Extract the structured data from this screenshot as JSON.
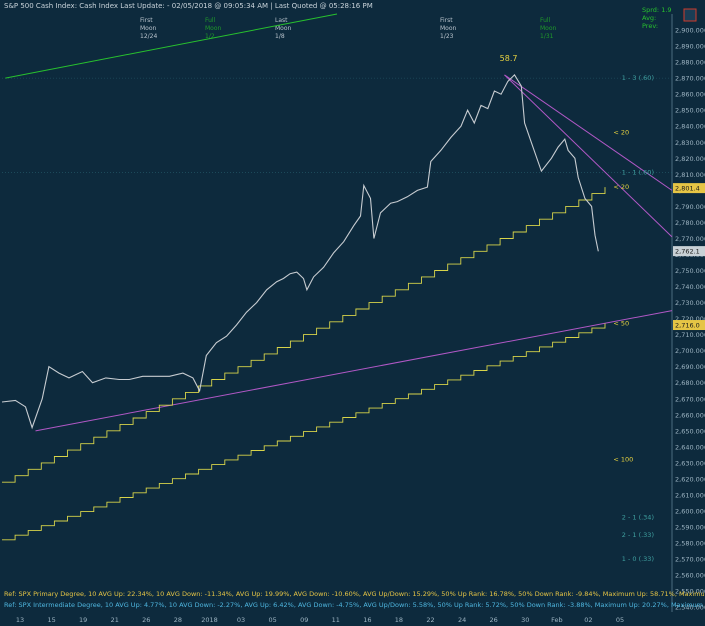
{
  "header": {
    "title": "S&P 500 Cash Index:  Cash Index  Last Update: - 02/05/2018 @ 09:05:34 AM | Last Quoted @ 05:28:16 PM",
    "moon_columns": [
      {
        "l1": "",
        "l2": "",
        "l3": "",
        "color": "#1f9a2a"
      },
      {
        "l1": "First",
        "l2": "Moon",
        "l3": "12/24",
        "color": "#b9c3cc"
      },
      {
        "l1": "Full",
        "l2": "Moon",
        "l3": "1/2",
        "color": "#1f9a2a"
      },
      {
        "l1": "Last",
        "l2": "Moon",
        "l3": "1/8",
        "color": "#b9c3cc"
      },
      {
        "l1": "",
        "l2": "",
        "l3": "",
        "color": "#1f9a2a"
      },
      {
        "l1": "First",
        "l2": "Moon",
        "l3": "1/23",
        "color": "#b9c3cc"
      },
      {
        "l1": "Full",
        "l2": "Moon",
        "l3": "1/31",
        "color": "#1f9a2a"
      }
    ],
    "right_labels": [
      "Sprd: 1.9",
      "Avg:",
      "Prev:"
    ]
  },
  "chart_data": {
    "type": "line",
    "peak_label": "58.7",
    "y_ticks": [
      2540,
      2550,
      2560,
      2570,
      2580,
      2590,
      2600,
      2610,
      2620,
      2630,
      2640,
      2650,
      2660,
      2670,
      2680,
      2690,
      2700,
      2710,
      2720,
      2730,
      2740,
      2750,
      2760,
      2770,
      2780,
      2790,
      2800,
      2810,
      2820,
      2830,
      2840,
      2850,
      2860,
      2870,
      2880,
      2890,
      2900
    ],
    "ylim": [
      2537,
      2910
    ],
    "x_ticks": [
      "13",
      "15",
      "19",
      "21",
      "26",
      "28",
      "2018",
      "03",
      "05",
      "09",
      "11",
      "16",
      "18",
      "22",
      "24",
      "26",
      "30",
      "Feb",
      "02",
      "05"
    ],
    "price_path": [
      [
        0,
        2668
      ],
      [
        8,
        2669
      ],
      [
        14,
        2665
      ],
      [
        18,
        2652
      ],
      [
        24,
        2670
      ],
      [
        28,
        2690
      ],
      [
        34,
        2686
      ],
      [
        40,
        2683
      ],
      [
        48,
        2687
      ],
      [
        54,
        2680
      ],
      [
        62,
        2683
      ],
      [
        70,
        2682
      ],
      [
        76,
        2682
      ],
      [
        84,
        2684
      ],
      [
        92,
        2684
      ],
      [
        100,
        2684
      ],
      [
        108,
        2686
      ],
      [
        114,
        2683
      ],
      [
        118,
        2675
      ],
      [
        122,
        2697
      ],
      [
        128,
        2705
      ],
      [
        134,
        2709
      ],
      [
        140,
        2716
      ],
      [
        146,
        2724
      ],
      [
        152,
        2730
      ],
      [
        158,
        2738
      ],
      [
        164,
        2743
      ],
      [
        168,
        2745
      ],
      [
        172,
        2748
      ],
      [
        176,
        2749
      ],
      [
        180,
        2745
      ],
      [
        182,
        2738
      ],
      [
        186,
        2746
      ],
      [
        192,
        2752
      ],
      [
        198,
        2761
      ],
      [
        204,
        2768
      ],
      [
        210,
        2778
      ],
      [
        214,
        2784
      ],
      [
        216,
        2803
      ],
      [
        220,
        2795
      ],
      [
        222,
        2770
      ],
      [
        226,
        2786
      ],
      [
        232,
        2792
      ],
      [
        236,
        2793
      ],
      [
        242,
        2796
      ],
      [
        248,
        2800
      ],
      [
        254,
        2802
      ],
      [
        256,
        2818
      ],
      [
        262,
        2825
      ],
      [
        268,
        2833
      ],
      [
        274,
        2840
      ],
      [
        278,
        2850
      ],
      [
        282,
        2842
      ],
      [
        286,
        2853
      ],
      [
        290,
        2851
      ],
      [
        294,
        2862
      ],
      [
        298,
        2860
      ],
      [
        302,
        2868
      ],
      [
        304,
        2870
      ],
      [
        306,
        2872
      ],
      [
        310,
        2865
      ],
      [
        312,
        2842
      ],
      [
        316,
        2830
      ],
      [
        320,
        2818
      ],
      [
        322,
        2812
      ],
      [
        328,
        2820
      ],
      [
        332,
        2827
      ],
      [
        336,
        2832
      ],
      [
        338,
        2825
      ],
      [
        342,
        2820
      ],
      [
        344,
        2808
      ],
      [
        348,
        2795
      ],
      [
        352,
        2790
      ],
      [
        354,
        2772
      ],
      [
        356,
        2762
      ]
    ],
    "lines": [
      {
        "name": "green_top",
        "color": "#28c12e",
        "pts": [
          [
            2,
            2870
          ],
          [
            200,
            2910
          ]
        ]
      },
      {
        "name": "purple_low",
        "color": "#b158c6",
        "pts": [
          [
            20,
            2650
          ],
          [
            400,
            2725
          ]
        ]
      },
      {
        "name": "purple_down1",
        "color": "#b158c6",
        "pts": [
          [
            300,
            2872
          ],
          [
            400,
            2800
          ]
        ]
      },
      {
        "name": "purple_down2",
        "color": "#b158c6",
        "pts": [
          [
            300,
            2872
          ],
          [
            400,
            2771
          ]
        ]
      }
    ],
    "stairs": [
      {
        "name": "upper_band",
        "start": [
          0,
          2618
        ],
        "end": [
          360,
          2802
        ],
        "steps": 46
      },
      {
        "name": "lower_band",
        "start": [
          0,
          2582
        ],
        "end": [
          360,
          2717
        ],
        "steps": 46
      }
    ],
    "mk": [
      {
        "text": "< 20",
        "x": 365,
        "y": 2836,
        "color": "#e7d240"
      },
      {
        "text": "< 20",
        "x": 365,
        "y": 2802,
        "color": "#e7d240"
      },
      {
        "text": "< 50",
        "x": 365,
        "y": 2717,
        "color": "#e7d240"
      },
      {
        "text": "< 100",
        "x": 365,
        "y": 2632,
        "color": "#e7d240"
      },
      {
        "text": "1 - 3 (.60)",
        "x": 370,
        "y": 2870,
        "color": "#3fa0a0"
      },
      {
        "text": "1 - 1 (.60)",
        "x": 370,
        "y": 2811,
        "color": "#3fa0a0"
      },
      {
        "text": "2 - 1 (.34)",
        "x": 370,
        "y": 2596,
        "color": "#3fa0a0"
      },
      {
        "text": "2 - 1 (.33)",
        "x": 370,
        "y": 2585,
        "color": "#3fa0a0"
      },
      {
        "text": "1 - 0 (.33)",
        "x": 370,
        "y": 2570,
        "color": "#3fa0a0"
      }
    ],
    "price_boxes": [
      {
        "text": "2,801.4",
        "y": 2801.4,
        "color": "#e6c545"
      },
      {
        "text": "2,762.1",
        "y": 2762.1,
        "color": "#c9d1d6"
      },
      {
        "text": "2,716.0",
        "y": 2716.0,
        "color": "#e6c545"
      }
    ],
    "footer": [
      {
        "text": "Ref: SPX Primary Degree, 10 AVG Up: 22.34%, 10 AVG Down: -11.34%, AVG Up: 19.99%, AVG Down: -10.60%, AVG Up/Down: 15.29%, 50%  Up Rank: 16.78%, 50% Down Rank: -9.84%, Maximum Up: 58.71%, Maximum",
        "color": "#e6c545"
      },
      {
        "text": "Ref: SPX Intermediate Degree, 10 AVG Up: 4.77%, 10 AVG Down: -2.27%, AVG Up: 6.42%, AVG Down: -4.75%, AVG Up/Down: 5.58%, 50%  Up Rank: 5.72%, 50% Down Rank: -3.88%, Maximum Up: 20.27%, Maximum Do",
        "color": "#4fb7e0"
      }
    ]
  }
}
